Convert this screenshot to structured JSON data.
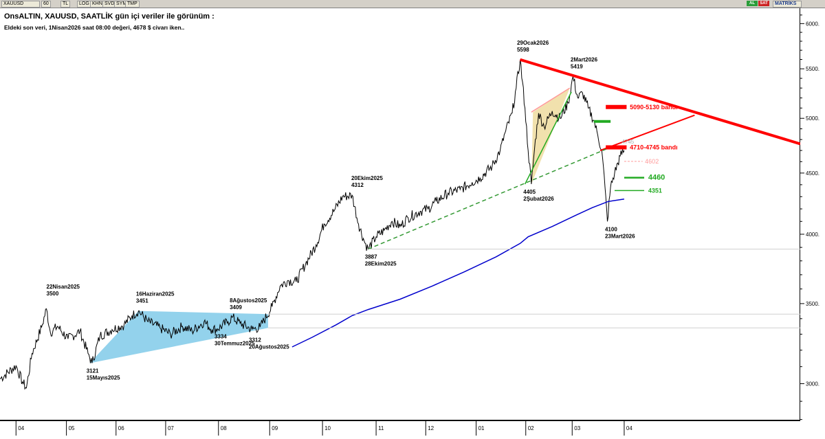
{
  "toolbar": {
    "symbol": "XAUUSD",
    "buttons": [
      "60",
      "TL",
      "LOG",
      "KHN",
      "SVD",
      "SYM",
      "TMP"
    ],
    "status_al": "AL",
    "status_sat": "SAT",
    "matriks": "MATRİKS"
  },
  "colors": {
    "price": "#000000",
    "ma": "#0000cc",
    "resistance": "#ff0000",
    "support_dash": "#339933",
    "green": "#22aa22",
    "triangle_blue": "#87cdea",
    "triangle_tan": "#f0dea4",
    "pink": "#ff9999"
  },
  "chart_data": {
    "type": "line",
    "title": "OnsALTIN, XAUUSD, SAATLİK gün içi veriler ile görünüm :",
    "subtitle": "Eldeki son veri, 1Nisan2026 saat 08:00 değeri, 4678 $ civarı iken..",
    "scale": "log",
    "ylim": [
      2795,
      6180
    ],
    "y_ticks": [
      3000,
      3500,
      4000,
      4500,
      5000,
      5500,
      6000
    ],
    "y_tick_labels": [
      "3000.",
      "3500.",
      "4000.",
      "4500.",
      "5000.",
      "5500.",
      "6000."
    ],
    "x_ticks": [
      {
        "t": 0.02,
        "label": "04"
      },
      {
        "t": 0.083,
        "label": "05"
      },
      {
        "t": 0.145,
        "label": "06"
      },
      {
        "t": 0.207,
        "label": "07"
      },
      {
        "t": 0.273,
        "label": "08"
      },
      {
        "t": 0.337,
        "label": "09"
      },
      {
        "t": 0.403,
        "label": "10"
      },
      {
        "t": 0.47,
        "label": "11"
      },
      {
        "t": 0.532,
        "label": "12"
      },
      {
        "t": 0.595,
        "label": "01"
      },
      {
        "t": 0.657,
        "label": "02"
      },
      {
        "t": 0.715,
        "label": "03"
      },
      {
        "t": 0.78,
        "label": "04"
      }
    ],
    "series": [
      {
        "type": "price",
        "points": [
          [
            0.0,
            3028
          ],
          [
            0.02,
            3105
          ],
          [
            0.028,
            3010
          ],
          [
            0.033,
            2975
          ],
          [
            0.04,
            3180
          ],
          [
            0.052,
            3345
          ],
          [
            0.058,
            3465
          ],
          [
            0.063,
            3310
          ],
          [
            0.072,
            3350
          ],
          [
            0.085,
            3270
          ],
          [
            0.1,
            3320
          ],
          [
            0.11,
            3180
          ],
          [
            0.115,
            3121
          ],
          [
            0.125,
            3290
          ],
          [
            0.14,
            3330
          ],
          [
            0.155,
            3360
          ],
          [
            0.165,
            3420
          ],
          [
            0.173,
            3451
          ],
          [
            0.185,
            3380
          ],
          [
            0.2,
            3340
          ],
          [
            0.213,
            3300
          ],
          [
            0.228,
            3350
          ],
          [
            0.24,
            3320
          ],
          [
            0.255,
            3380
          ],
          [
            0.265,
            3330
          ],
          [
            0.272,
            3334
          ],
          [
            0.285,
            3380
          ],
          [
            0.29,
            3409
          ],
          [
            0.3,
            3370
          ],
          [
            0.315,
            3330
          ],
          [
            0.325,
            3345
          ],
          [
            0.34,
            3480
          ],
          [
            0.35,
            3620
          ],
          [
            0.36,
            3660
          ],
          [
            0.37,
            3650
          ],
          [
            0.382,
            3780
          ],
          [
            0.395,
            3920
          ],
          [
            0.405,
            4080
          ],
          [
            0.418,
            4190
          ],
          [
            0.428,
            4300
          ],
          [
            0.44,
            4312
          ],
          [
            0.448,
            4080
          ],
          [
            0.455,
            3950
          ],
          [
            0.46,
            3887
          ],
          [
            0.47,
            3980
          ],
          [
            0.48,
            4030
          ],
          [
            0.49,
            4100
          ],
          [
            0.5,
            4060
          ],
          [
            0.51,
            4130
          ],
          [
            0.525,
            4180
          ],
          [
            0.535,
            4200
          ],
          [
            0.545,
            4260
          ],
          [
            0.56,
            4330
          ],
          [
            0.575,
            4360
          ],
          [
            0.59,
            4420
          ],
          [
            0.6,
            4460
          ],
          [
            0.615,
            4560
          ],
          [
            0.625,
            4700
          ],
          [
            0.632,
            4880
          ],
          [
            0.64,
            5050
          ],
          [
            0.645,
            5300
          ],
          [
            0.65,
            5598
          ],
          [
            0.656,
            5100
          ],
          [
            0.66,
            4700
          ],
          [
            0.664,
            4405
          ],
          [
            0.668,
            4720
          ],
          [
            0.673,
            5050
          ],
          [
            0.68,
            4920
          ],
          [
            0.69,
            5070
          ],
          [
            0.7,
            5000
          ],
          [
            0.71,
            5150
          ],
          [
            0.716,
            5419
          ],
          [
            0.722,
            5200
          ],
          [
            0.728,
            5250
          ],
          [
            0.735,
            5100
          ],
          [
            0.742,
            4980
          ],
          [
            0.747,
            4840
          ],
          [
            0.752,
            4700
          ],
          [
            0.756,
            4380
          ],
          [
            0.759,
            4100
          ],
          [
            0.763,
            4380
          ],
          [
            0.768,
            4500
          ],
          [
            0.775,
            4650
          ],
          [
            0.78,
            4700
          ]
        ]
      },
      {
        "type": "ma",
        "points": [
          [
            0.365,
            3220
          ],
          [
            0.39,
            3280
          ],
          [
            0.42,
            3360
          ],
          [
            0.44,
            3420
          ],
          [
            0.46,
            3460
          ],
          [
            0.5,
            3530
          ],
          [
            0.54,
            3620
          ],
          [
            0.58,
            3720
          ],
          [
            0.62,
            3830
          ],
          [
            0.65,
            3930
          ],
          [
            0.66,
            3980
          ],
          [
            0.69,
            4060
          ],
          [
            0.72,
            4150
          ],
          [
            0.74,
            4210
          ],
          [
            0.76,
            4260
          ],
          [
            0.78,
            4280
          ]
        ]
      }
    ],
    "shapes": [
      {
        "kind": "poly",
        "fill": "triangle_blue",
        "pts": [
          [
            0.112,
            3121
          ],
          [
            0.173,
            3451
          ],
          [
            0.335,
            3430
          ],
          [
            0.335,
            3340
          ]
        ]
      },
      {
        "kind": "poly",
        "fill": "triangle_tan",
        "pts": [
          [
            0.664,
            4405
          ],
          [
            0.666,
            5060
          ],
          [
            0.712,
            5300
          ]
        ]
      },
      {
        "kind": "line",
        "color": "resistance",
        "width": 4,
        "pts": [
          [
            0.65,
            5598
          ],
          [
            1.0,
            4760
          ]
        ]
      },
      {
        "kind": "line",
        "color": "resistance",
        "width": 2,
        "pts": [
          [
            0.75,
            4700
          ],
          [
            0.868,
            5030
          ]
        ]
      },
      {
        "kind": "line",
        "color": "support_dash",
        "width": 1.5,
        "dash": "6 4",
        "pts": [
          [
            0.46,
            3887
          ],
          [
            0.76,
            4720
          ]
        ]
      },
      {
        "kind": "line",
        "color": "green",
        "width": 1.5,
        "pts": [
          [
            0.656,
            4405
          ],
          [
            0.714,
            5260
          ]
        ]
      },
      {
        "kind": "line",
        "color": "pink",
        "width": 1.5,
        "pts": [
          [
            0.664,
            5060
          ],
          [
            0.712,
            5300
          ]
        ]
      },
      {
        "kind": "hline",
        "color": "#cfcfcf",
        "width": 1,
        "y": 3430,
        "x1": 0.335,
        "x2": 1.0
      },
      {
        "kind": "hline",
        "color": "#cfcfcf",
        "width": 1,
        "y": 3340,
        "x1": 0.335,
        "x2": 1.0
      },
      {
        "kind": "hline",
        "color": "#cfcfcf",
        "width": 1,
        "y": 3887,
        "x1": 0.46,
        "x2": 1.0
      },
      {
        "kind": "hline",
        "color": "resistance",
        "width": 6,
        "y": 5110,
        "x1": 0.757,
        "x2": 0.783
      },
      {
        "kind": "hline",
        "color": "resistance",
        "width": 6,
        "y": 4728,
        "x1": 0.757,
        "x2": 0.783
      },
      {
        "kind": "hline",
        "color": "green",
        "width": 4,
        "y": 4970,
        "x1": 0.742,
        "x2": 0.763
      },
      {
        "kind": "hline",
        "color": "green",
        "width": 2.5,
        "y": 4460,
        "x1": 0.78,
        "x2": 0.805
      },
      {
        "kind": "hline",
        "color": "green",
        "width": 1.5,
        "y": 4351,
        "x1": 0.768,
        "x2": 0.805
      },
      {
        "kind": "hline",
        "color": "pink",
        "width": 1,
        "dash": "3 2",
        "y": 4602,
        "x1": 0.78,
        "x2": 0.803
      }
    ],
    "annotations": [
      {
        "t": 0.058,
        "y": 3500,
        "lines": [
          "22Nisan2025",
          "3500"
        ],
        "pos": "above"
      },
      {
        "t": 0.108,
        "y": 3121,
        "lines": [
          "3121",
          "15Mayıs2025"
        ],
        "pos": "below"
      },
      {
        "t": 0.17,
        "y": 3451,
        "lines": [
          "16Haziran2025",
          "3451"
        ],
        "pos": "above"
      },
      {
        "t": 0.287,
        "y": 3409,
        "lines": [
          "8Ağustos2025",
          "3409"
        ],
        "pos": "above"
      },
      {
        "t": 0.268,
        "y": 3334,
        "lines": [
          "3334",
          "30Temmuz2025"
        ],
        "pos": "below"
      },
      {
        "t": 0.311,
        "y": 3312,
        "lines": [
          "3312",
          "20Ağustos2025"
        ],
        "pos": "below"
      },
      {
        "t": 0.439,
        "y": 4312,
        "lines": [
          "20Ekim2025",
          "4312"
        ],
        "pos": "above"
      },
      {
        "t": 0.456,
        "y": 3887,
        "lines": [
          "3887",
          "28Ekim2025"
        ],
        "pos": "below"
      },
      {
        "t": 0.646,
        "y": 5598,
        "lines": [
          "29Ocak2026",
          "5598"
        ],
        "pos": "above"
      },
      {
        "t": 0.713,
        "y": 5419,
        "lines": [
          "2Mart2026",
          "5419"
        ],
        "pos": "above"
      },
      {
        "t": 0.654,
        "y": 4405,
        "lines": [
          "4405",
          "2Şubat2026"
        ],
        "pos": "below"
      },
      {
        "t": 0.756,
        "y": 4100,
        "lines": [
          "4100",
          "23Mart2026"
        ],
        "pos": "below"
      }
    ],
    "level_labels": [
      {
        "t": 0.787,
        "y": 5110,
        "text": "5090-5130 bandı",
        "color": "resistance",
        "size": 9,
        "bold": true
      },
      {
        "t": 0.787,
        "y": 4728,
        "text": "4710-4745 bandı",
        "color": "resistance",
        "size": 9,
        "bold": true
      },
      {
        "t": 0.806,
        "y": 4602,
        "text": "4602",
        "color": "pink",
        "size": 9,
        "bold": false
      },
      {
        "t": 0.81,
        "y": 4460,
        "text": "4460",
        "color": "green",
        "size": 11,
        "bold": true
      },
      {
        "t": 0.81,
        "y": 4351,
        "text": "4351",
        "color": "green",
        "size": 9,
        "bold": true
      },
      {
        "t": 0.777,
        "y": 4780,
        "text": "4745",
        "color": "#aaaaaa",
        "size": 8,
        "bold": false
      }
    ]
  }
}
